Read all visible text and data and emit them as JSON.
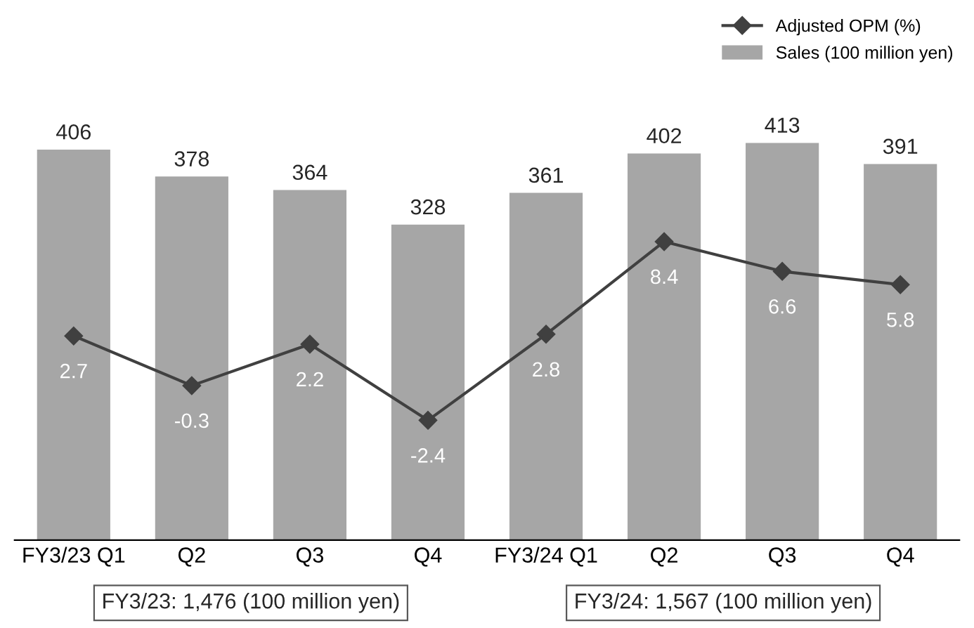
{
  "chart_data": {
    "type": "bar",
    "categories": [
      "FY3/23 Q1",
      "Q2",
      "Q3",
      "Q4",
      "FY3/24 Q1",
      "Q2",
      "Q3",
      "Q4"
    ],
    "series": [
      {
        "name": "Sales (100 million yen)",
        "color": "#a6a6a6",
        "values": [
          406,
          378,
          364,
          328,
          361,
          402,
          413,
          391
        ]
      },
      {
        "name": "Adjusted OPM (%)",
        "type": "line",
        "axis": "y2",
        "color": "#404040",
        "marker": "diamond",
        "values": [
          2.7,
          -0.3,
          2.2,
          -2.4,
          2.8,
          8.4,
          6.6,
          5.8
        ]
      }
    ],
    "data_labels": true,
    "legend": "top right",
    "grid": false,
    "tick_labels": "x",
    "annotations": [
      "FY3/23: 1,476 (100 million yen)",
      "FY3/24: 1,567 (100 million yen)"
    ]
  }
}
